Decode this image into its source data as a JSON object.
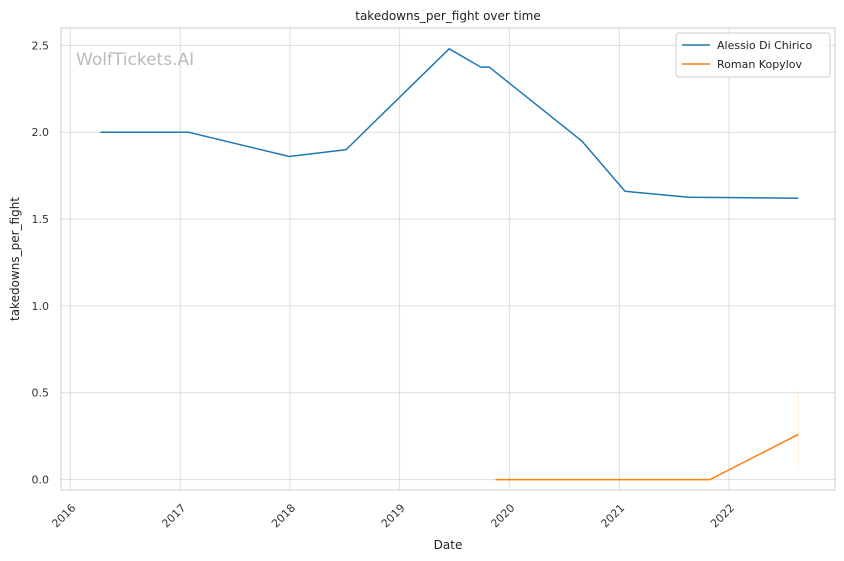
{
  "chart_data": {
    "type": "line",
    "title": "takedowns_per_fight over time",
    "xlabel": "Date",
    "ylabel": "takedowns_per_fight",
    "watermark": "WolfTickets.AI",
    "xlim": [
      "2015-12-01",
      "2022-12-20"
    ],
    "ylim": [
      -0.06,
      2.6
    ],
    "x_ticks": [
      {
        "date": "2016-01-01",
        "label": "2016"
      },
      {
        "date": "2017-01-01",
        "label": "2017"
      },
      {
        "date": "2018-01-01",
        "label": "2018"
      },
      {
        "date": "2019-01-01",
        "label": "2019"
      },
      {
        "date": "2020-01-01",
        "label": "2020"
      },
      {
        "date": "2021-01-01",
        "label": "2021"
      },
      {
        "date": "2022-01-01",
        "label": "2022"
      }
    ],
    "y_ticks": [
      {
        "value": 0.0,
        "label": "0.0"
      },
      {
        "value": 0.5,
        "label": "0.5"
      },
      {
        "value": 1.0,
        "label": "1.0"
      },
      {
        "value": 1.5,
        "label": "1.5"
      },
      {
        "value": 2.0,
        "label": "2.0"
      },
      {
        "value": 2.5,
        "label": "2.5"
      }
    ],
    "grid": true,
    "legend_position": "top-right",
    "series": [
      {
        "name": "Alessio Di Chirico",
        "color": "#1f77b4",
        "points": [
          {
            "date": "2016-04-10",
            "y": 2.0
          },
          {
            "date": "2017-01-28",
            "y": 2.0
          },
          {
            "date": "2017-12-30",
            "y": 1.86
          },
          {
            "date": "2018-07-07",
            "y": 1.9
          },
          {
            "date": "2019-06-15",
            "y": 2.48
          },
          {
            "date": "2019-09-28",
            "y": 2.375
          },
          {
            "date": "2019-10-26",
            "y": 2.375
          },
          {
            "date": "2020-08-29",
            "y": 1.95
          },
          {
            "date": "2021-01-20",
            "y": 1.66
          },
          {
            "date": "2021-08-21",
            "y": 1.625
          },
          {
            "date": "2022-08-20",
            "y": 1.62
          }
        ]
      },
      {
        "name": "Roman Kopylov",
        "color": "#ff7f0e",
        "points": [
          {
            "date": "2019-11-16",
            "y": 0.0
          },
          {
            "date": "2021-10-30",
            "y": 0.0
          },
          {
            "date": "2022-08-20",
            "y": 0.26
          }
        ]
      }
    ]
  }
}
